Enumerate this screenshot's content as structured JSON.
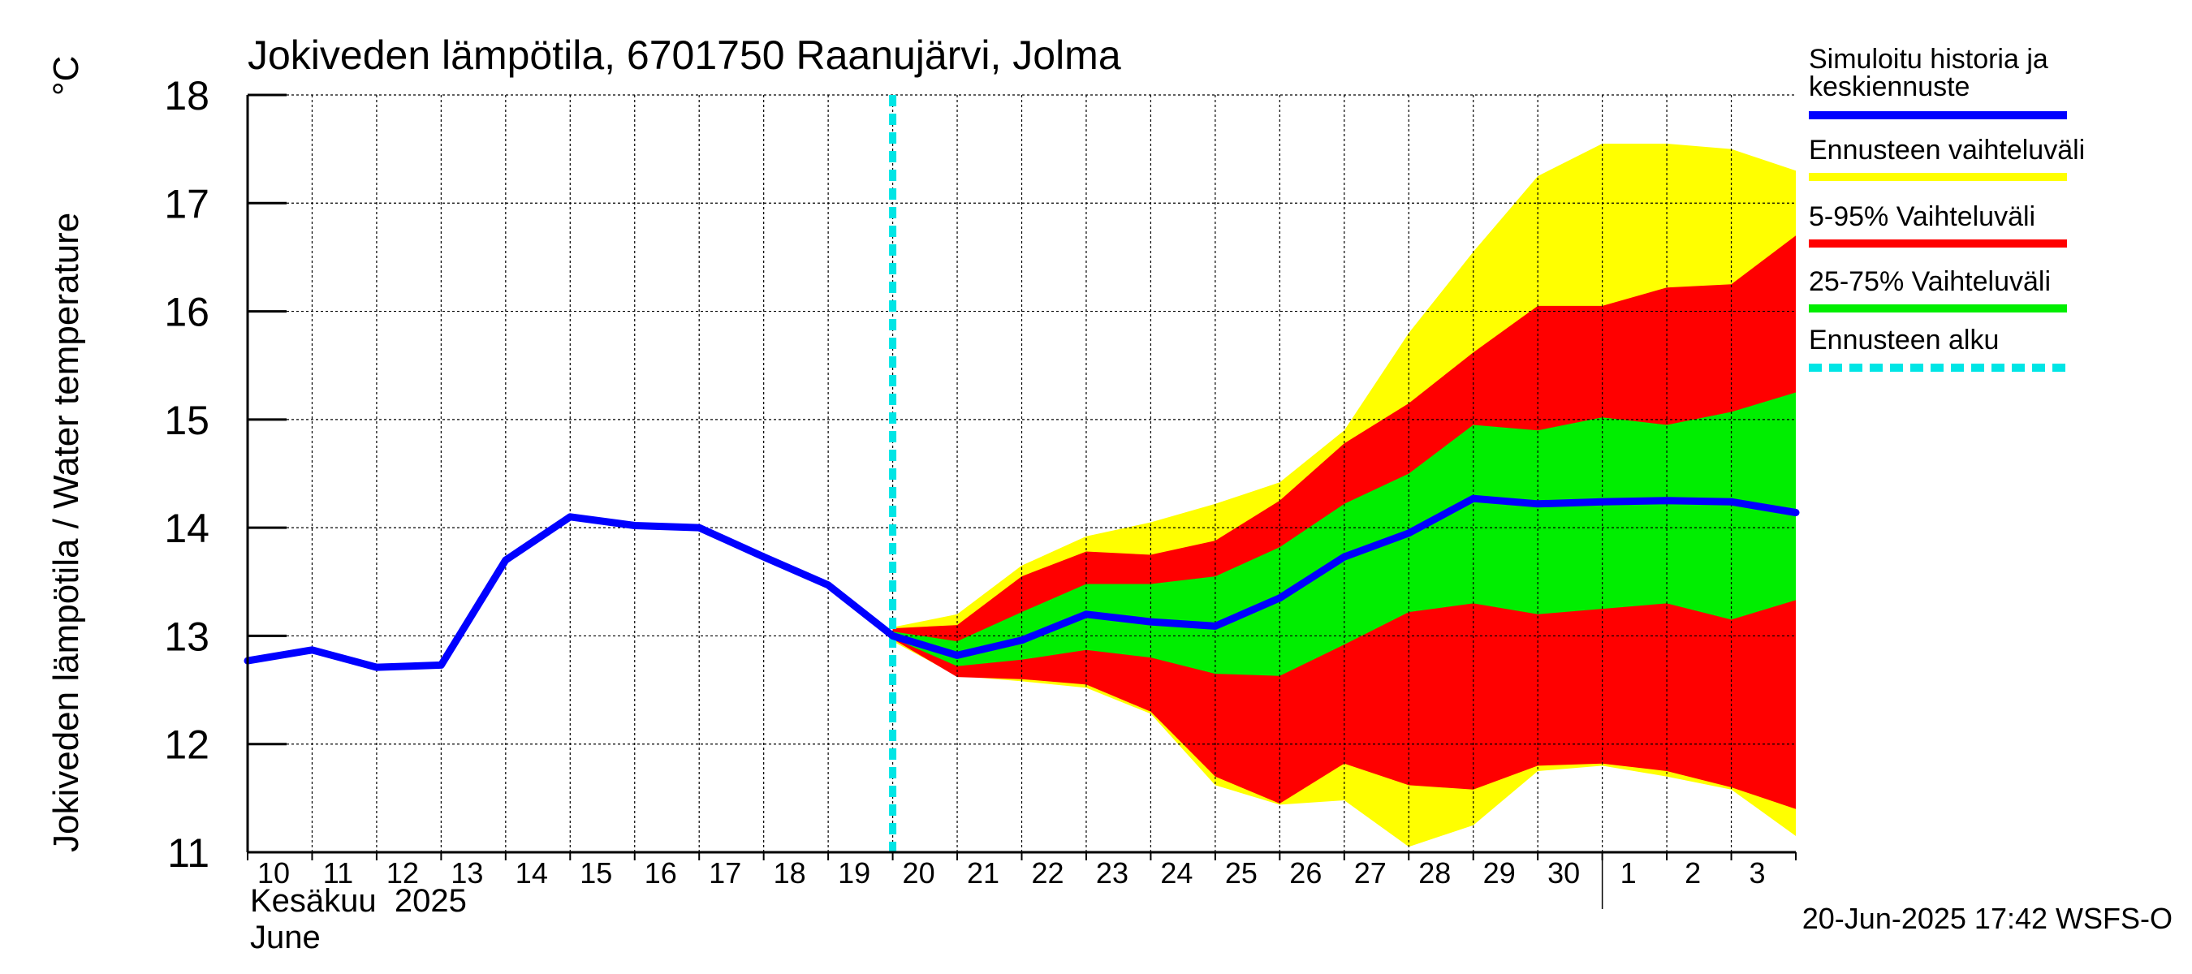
{
  "chart_data": {
    "type": "area",
    "title": "Jokiveden lämpötila, 6701750 Raanujärvi, Jolma",
    "ylabel": "Jokiveden lämpötila / Water temperature",
    "yunit": "°C",
    "ylim": [
      11,
      18
    ],
    "yticks": [
      11,
      12,
      13,
      14,
      15,
      16,
      17,
      18
    ],
    "grid": true,
    "x": [
      "2025-06-10",
      "2025-06-11",
      "2025-06-12",
      "2025-06-13",
      "2025-06-14",
      "2025-06-15",
      "2025-06-16",
      "2025-06-17",
      "2025-06-18",
      "2025-06-19",
      "2025-06-20",
      "2025-06-21",
      "2025-06-22",
      "2025-06-23",
      "2025-06-24",
      "2025-06-25",
      "2025-06-26",
      "2025-06-27",
      "2025-06-28",
      "2025-06-29",
      "2025-06-30",
      "2025-07-01",
      "2025-07-02",
      "2025-07-03",
      "2025-07-04"
    ],
    "xlim": [
      "2025-06-10",
      "2025-07-04"
    ],
    "xtick_labels": [
      "10",
      "11",
      "12",
      "13",
      "14",
      "15",
      "16",
      "17",
      "18",
      "19",
      "20",
      "21",
      "22",
      "23",
      "24",
      "25",
      "26",
      "27",
      "28",
      "29",
      "30",
      "1",
      "2",
      "3"
    ],
    "month_labels": [
      "Kesäkuu  2025",
      "June"
    ],
    "forecast_start": "2025-06-20",
    "series": [
      {
        "name": "Simuloitu historia ja keskiennuste",
        "color": "#0000ff",
        "values": [
          12.77,
          12.87,
          12.71,
          12.73,
          13.7,
          14.1,
          14.02,
          14.0,
          13.73,
          13.47,
          13.0,
          12.82,
          12.96,
          13.2,
          13.13,
          13.09,
          13.35,
          13.73,
          13.95,
          14.27,
          14.22,
          14.24,
          14.25,
          14.24,
          14.14
        ]
      },
      {
        "name": "Ennusteen vaihteluväli",
        "color": "#ffff00",
        "range_from": "2025-06-20",
        "lower": [
          12.95,
          12.63,
          12.58,
          12.52,
          12.28,
          11.62,
          11.44,
          11.48,
          11.05,
          11.25,
          11.75,
          11.8,
          11.7,
          11.58,
          11.15
        ],
        "upper": [
          13.08,
          13.2,
          13.65,
          13.92,
          14.05,
          14.22,
          14.42,
          14.9,
          15.8,
          16.55,
          17.25,
          17.55,
          17.55,
          17.5,
          17.3
        ]
      },
      {
        "name": "5-95% Vaihteluväli",
        "color": "#ff0000",
        "range_from": "2025-06-20",
        "lower": [
          12.97,
          12.62,
          12.6,
          12.55,
          12.3,
          11.7,
          11.45,
          11.82,
          11.62,
          11.58,
          11.8,
          11.82,
          11.75,
          11.6,
          11.4
        ],
        "upper": [
          13.07,
          13.1,
          13.55,
          13.78,
          13.75,
          13.88,
          14.25,
          14.78,
          15.15,
          15.62,
          16.05,
          16.05,
          16.22,
          16.25,
          16.7
        ]
      },
      {
        "name": "25-75% Vaihteluväli",
        "color": "#00ee00",
        "range_from": "2025-06-20",
        "lower": [
          12.98,
          12.72,
          12.78,
          12.87,
          12.8,
          12.65,
          12.63,
          12.92,
          13.22,
          13.3,
          13.2,
          13.25,
          13.3,
          13.15,
          13.33
        ],
        "upper": [
          13.04,
          12.95,
          13.22,
          13.48,
          13.48,
          13.55,
          13.82,
          14.22,
          14.5,
          14.95,
          14.9,
          15.02,
          14.95,
          15.07,
          15.25
        ]
      }
    ],
    "legend": {
      "position": "right",
      "entries": [
        {
          "label": "Simuloitu historia ja keskiennuste",
          "color": "#0000ff",
          "style": "solid"
        },
        {
          "label": "Ennusteen vaihteluväli",
          "color": "#ffff00",
          "style": "solid"
        },
        {
          "label": "5-95% Vaihteluväli",
          "color": "#ff0000",
          "style": "solid"
        },
        {
          "label": "25-75% Vaihteluväli",
          "color": "#00ee00",
          "style": "solid"
        },
        {
          "label": "Ennusteen alku",
          "color": "#00e5e5",
          "style": "dashed"
        }
      ]
    },
    "footer": "20-Jun-2025 17:42 WSFS-O"
  }
}
